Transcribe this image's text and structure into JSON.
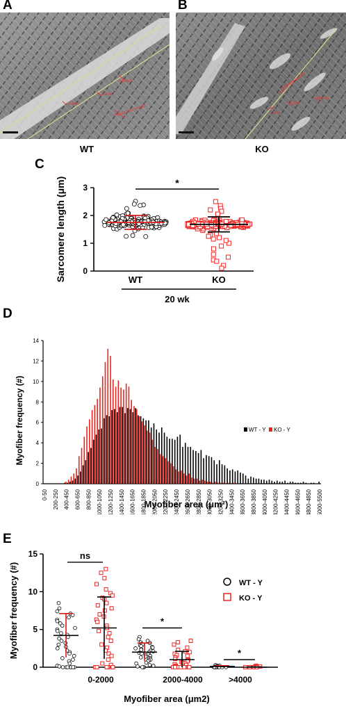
{
  "panels": {
    "a": {
      "letter": "A",
      "caption": "WT",
      "annotations": [
        "Z-line",
        "Z-line",
        "I-band",
        "Sarcomere length"
      ]
    },
    "b": {
      "letter": "B",
      "caption": "KO",
      "annotations": [
        "Sarcomere length",
        "Z-line",
        "I-band",
        "Z-line"
      ]
    },
    "c": {
      "letter": "C"
    },
    "d": {
      "letter": "D"
    },
    "e": {
      "letter": "E"
    }
  },
  "chart_data": [
    {
      "id": "C",
      "type": "scatter",
      "ylabel": "Sarcomere length (μm)",
      "ylim": [
        0,
        3
      ],
      "yticks": [
        "0",
        "1",
        "2",
        "3"
      ],
      "categories": [
        "WT",
        "KO"
      ],
      "group_label": "20 wk",
      "series": [
        {
          "name": "WT",
          "marker": "circle",
          "color": "#000000",
          "mean": 1.75,
          "sd": 0.25,
          "points": [
            1.76,
            1.52,
            2.02,
            1.91,
            1.66,
            1.81,
            2.25,
            1.55,
            1.6,
            1.72,
            1.95,
            1.58,
            1.76,
            2.06,
            1.72,
            1.7,
            1.98,
            2.08,
            1.74,
            1.81,
            1.7,
            1.53,
            1.9,
            1.79,
            1.51,
            1.66,
            1.6,
            1.96,
            1.92,
            1.86,
            1.77,
            1.71,
            1.57,
            1.56,
            1.75,
            1.64,
            1.69,
            1.91,
            1.7,
            1.56,
            1.71,
            1.67,
            1.88,
            1.59,
            1.68,
            1.64,
            1.58,
            1.99,
            1.81,
            1.65,
            1.97,
            1.75,
            2.08,
            1.63,
            1.71,
            1.67,
            1.94,
            1.89,
            1.95,
            1.58,
            1.92,
            1.86,
            1.68,
            1.75,
            1.61,
            1.58,
            1.64,
            1.75,
            1.79,
            1.77,
            1.84,
            1.79,
            1.81,
            1.65,
            1.71,
            1.75,
            1.6,
            1.8,
            1.68,
            1.76,
            1.77,
            1.88,
            1.71,
            1.76,
            1.7,
            1.76,
            1.73,
            1.92,
            1.63,
            1.76,
            1.74,
            1.71,
            1.78,
            1.6,
            1.75,
            1.77,
            1.82,
            1.89,
            1.67,
            1.76,
            1.67,
            1.77,
            1.78,
            1.87,
            1.73,
            1.81,
            1.71,
            1.9,
            1.75,
            1.73,
            1.76,
            1.58,
            1.85,
            1.92,
            1.67,
            1.77,
            1.68,
            1.75,
            1.79,
            1.69,
            1.79,
            1.77,
            1.86,
            1.82,
            1.8,
            1.74,
            1.89,
            1.74,
            1.75,
            1.67,
            1.72,
            1.77,
            1.73,
            1.63,
            1.72,
            1.79,
            1.69,
            1.82,
            1.64,
            1.84,
            1.76,
            1.79,
            1.74,
            1.67,
            1.75,
            1.68,
            1.78,
            1.73,
            1.72,
            1.8,
            1.73,
            1.69,
            1.71,
            1.67,
            1.85,
            1.78,
            1.7,
            1.75,
            1.79,
            1.74,
            1.69,
            1.71,
            1.8,
            1.71,
            1.77,
            1.73,
            1.77,
            1.75,
            1.72,
            1.68,
            1.71,
            1.75,
            1.75,
            1.81,
            1.76,
            1.72,
            1.76,
            1.73,
            1.78,
            1.7,
            1.77,
            1.74,
            1.73,
            1.71,
            1.77,
            1.75,
            1.74,
            1.76,
            2.51,
            2.41,
            2.38,
            2.36,
            1.25,
            1.28,
            1.45,
            1.24
          ]
        },
        {
          "name": "KO",
          "marker": "square",
          "color": "#ee2222",
          "mean": 1.68,
          "sd": 0.27,
          "points": [
            1.72,
            1.82,
            1.78,
            1.46,
            1.6,
            1.63,
            1.72,
            1.84,
            1.83,
            1.82,
            1.67,
            1.73,
            1.52,
            1.6,
            1.78,
            1.67,
            1.65,
            1.64,
            1.62,
            1.53,
            1.76,
            1.6,
            1.54,
            1.7,
            1.57,
            1.67,
            1.79,
            1.61,
            1.69,
            1.69,
            1.75,
            1.74,
            1.63,
            1.6,
            1.52,
            1.61,
            1.71,
            1.6,
            1.75,
            1.67,
            1.85,
            1.69,
            1.82,
            1.68,
            1.69,
            1.71,
            1.59,
            1.71,
            1.61,
            1.62,
            1.64,
            1.78,
            1.73,
            1.62,
            1.64,
            1.59,
            1.66,
            1.67,
            1.61,
            1.73,
            1.72,
            1.73,
            1.59,
            1.71,
            1.59,
            1.71,
            1.69,
            1.62,
            1.6,
            1.6,
            1.6,
            1.66,
            1.7,
            1.64,
            1.66,
            1.72,
            1.64,
            1.64,
            1.68,
            1.68,
            1.7,
            1.68,
            1.66,
            1.67,
            1.72,
            1.67,
            1.68,
            1.69,
            1.67,
            1.63,
            1.64,
            1.67,
            1.64,
            1.67,
            1.65,
            1.68,
            1.67,
            1.65,
            1.66,
            1.66,
            1.76,
            1.67,
            1.67,
            1.69,
            1.66,
            1.68,
            1.67,
            1.67,
            1.66,
            1.68,
            1.73,
            1.84,
            1.63,
            1.62,
            1.71,
            1.73,
            1.71,
            1.69,
            1.73,
            1.74,
            1.69,
            1.64,
            1.75,
            1.83,
            1.62,
            1.68,
            1.76,
            1.63,
            1.66,
            1.77,
            1.73,
            1.71,
            1.67,
            1.65,
            1.62,
            1.58,
            1.62,
            1.66,
            1.7,
            1.59,
            1.72,
            1.63,
            1.65,
            1.69,
            1.63,
            1.73,
            1.6,
            1.62,
            1.64,
            1.7,
            1.61,
            1.63,
            1.56,
            1.65,
            1.76,
            1.64,
            1.62,
            1.66,
            1.66,
            1.67,
            1.69,
            1.65,
            1.68,
            1.7,
            1.68,
            1.69,
            1.66,
            1.69,
            1.69,
            1.67,
            1.69,
            1.66,
            1.63,
            1.66,
            1.69,
            1.7,
            1.68,
            1.68,
            1.67,
            1.67,
            1.66,
            1.7,
            1.68,
            1.72,
            1.66,
            1.67,
            1.68,
            1.67,
            1.68,
            1.69,
            1.74,
            1.72,
            1.79,
            1.64,
            1.6,
            1.67,
            1.66,
            1.73,
            1.62,
            1.69,
            1.68,
            1.67,
            1.6,
            1.66,
            1.74,
            1.71,
            1.66,
            1.7,
            1.67,
            1.67,
            1.69,
            1.61,
            1.7,
            1.6,
            1.68,
            1.7,
            1.68,
            1.69,
            1.68,
            1.67,
            1.68,
            1.65,
            1.67,
            1.64,
            1.68,
            1.66,
            1.66,
            1.68,
            1.68,
            1.66,
            1.69,
            1.65,
            1.7,
            1.67,
            1.66,
            1.69,
            1.69,
            1.68,
            2.35,
            2.25,
            2.5,
            2.15,
            2.2,
            2.05,
            1.35,
            1.3,
            1.2,
            1.15,
            1.25,
            1.0,
            0.9,
            0.8,
            0.6,
            0.5,
            0.4,
            0.2,
            0.1,
            0.35,
            1.1
          ]
        }
      ],
      "annotations": [
        {
          "text": "*",
          "between": [
            "WT",
            "KO"
          ]
        }
      ]
    },
    {
      "id": "D",
      "type": "bar",
      "xlabel": "Myofiber area (μm²)",
      "ylabel": "Myofiber frequency (#)",
      "ylim": [
        0,
        14
      ],
      "yticks": [
        "0",
        "2",
        "4",
        "6",
        "8",
        "10",
        "12",
        "14"
      ],
      "bin_width": 50,
      "bin_start": 0,
      "tick_labels": [
        "0-50",
        "200-250",
        "400-450",
        "600-650",
        "800-850",
        "1000-1050",
        "1200-1250",
        "1400-1450",
        "1600-1650",
        "1800-1850",
        "2000-2050",
        "2200-2250",
        "2400-2450",
        "2600-2650",
        "2800-2850",
        "3000-3050",
        "3200-3250",
        "3400-3450",
        "3600-3650",
        "3800-3850",
        "4000-4050",
        "4200-4250",
        "4400-4450",
        "4600-4650",
        "4800-4850",
        "5000-5500"
      ],
      "legend": {
        "position": "right",
        "entries": [
          "WT - Y",
          "KO - Y"
        ]
      },
      "series": [
        {
          "name": "WT - Y",
          "color": "#000000",
          "values": [
            0,
            0,
            0,
            0,
            0,
            0,
            0,
            0,
            0.1,
            0.1,
            0.2,
            0.3,
            0.5,
            0.8,
            1.2,
            1.8,
            2.3,
            3.1,
            3.5,
            4.3,
            4.8,
            5.3,
            5.4,
            6.4,
            6.7,
            6.6,
            7.2,
            7.3,
            7.0,
            7.5,
            7.5,
            6.9,
            7.4,
            7.3,
            7.0,
            7.4,
            6.7,
            6.6,
            6.4,
            6.2,
            6.2,
            5.5,
            5.9,
            5.3,
            5.0,
            5.5,
            5.0,
            4.6,
            4.4,
            4.4,
            4.3,
            4.6,
            4.8,
            3.6,
            4.0,
            3.6,
            3.6,
            3.3,
            3.2,
            3.0,
            3.3,
            2.5,
            2.8,
            2.7,
            2.6,
            2.3,
            1.9,
            2.3,
            1.9,
            1.8,
            1.5,
            1.3,
            1.4,
            1.2,
            1.3,
            1.1,
            1.0,
            0.8,
            0.5,
            0.7,
            0.6,
            0.5,
            0.5,
            0.4,
            0.4,
            0.3,
            0.4,
            0.3,
            0.2,
            0.3,
            0.2,
            0.2,
            0.3,
            0.1,
            0.2,
            0.2,
            0.1,
            0.1,
            0.1,
            0.2,
            0.1,
            0.0,
            0.1,
            0.1,
            0.0,
            0.2
          ]
        },
        {
          "name": "KO - Y",
          "color": "#e8231c",
          "values": [
            0,
            0,
            0,
            0,
            0,
            0,
            0,
            0,
            0.2,
            0.4,
            0.7,
            1.0,
            1.5,
            2.7,
            3.5,
            4.6,
            5.6,
            6.3,
            7.2,
            7.7,
            8.3,
            9.4,
            10.5,
            11.9,
            13.2,
            12.5,
            10.2,
            9.5,
            10.1,
            9.4,
            9.2,
            9.8,
            9.5,
            8.2,
            7.6,
            7.3,
            6.6,
            6.1,
            5.7,
            5.2,
            5.0,
            4.3,
            3.6,
            3.4,
            2.9,
            2.7,
            2.5,
            2.2,
            2.0,
            1.7,
            1.4,
            1.2,
            1.3,
            1.0,
            0.8,
            1.0,
            0.6,
            0.5,
            0.5,
            0.3,
            0.4,
            0.3,
            0.2,
            0.2,
            0.1,
            0.2,
            0.1,
            0.1,
            0.1,
            0.0,
            0.1,
            0.0,
            0.1,
            0.0,
            0.0,
            0.0,
            0.0,
            0.0,
            0.0,
            0.0,
            0.0,
            0.0,
            0.0,
            0.0,
            0.0,
            0.0,
            0.0,
            0.0,
            0.0,
            0.0,
            0.0,
            0.0,
            0.0,
            0.0,
            0.0,
            0.0,
            0.0,
            0.0,
            0.0,
            0.0,
            0.0,
            0.0,
            0.0,
            0.0,
            0.0,
            0.0
          ]
        }
      ]
    },
    {
      "id": "E",
      "type": "scatter",
      "xlabel": "Myofiber area (μm2)",
      "ylabel": "Myofiber frequency (#)",
      "ylim": [
        0,
        15
      ],
      "yticks": [
        "0",
        "5",
        "10",
        "15"
      ],
      "categories": [
        "0-2000",
        "2000-4000",
        ">4000"
      ],
      "legend": {
        "position": "right",
        "entries": [
          "WT - Y",
          "KO - Y"
        ]
      },
      "series": [
        {
          "name": "WT - Y",
          "marker": "circle",
          "color": "#000000",
          "groups": [
            {
              "mean": 4.2,
              "sd": 2.9,
              "points": [
                8.5,
                7.8,
                7.4,
                7.1,
                6.9,
                6.6,
                6.3,
                6.1,
                5.8,
                5.5,
                5.2,
                5.0,
                4.8,
                4.5,
                4.3,
                4.0,
                3.8,
                3.5,
                3.2,
                3.0,
                2.7,
                2.5,
                2.2,
                2.0,
                1.8,
                1.5,
                1.2,
                1.0,
                0.8,
                0.5,
                0.2,
                0.1,
                0,
                0,
                0,
                0,
                0,
                0,
                0
              ]
            },
            {
              "mean": 2.0,
              "sd": 1.2,
              "points": [
                4.0,
                3.7,
                3.5,
                3.3,
                3.2,
                3.1,
                3.0,
                2.9,
                2.8,
                2.7,
                2.6,
                2.5,
                2.4,
                2.3,
                2.2,
                2.1,
                2.0,
                1.9,
                1.8,
                1.7,
                1.6,
                1.5,
                1.4,
                1.3,
                1.2,
                1.1,
                1.0,
                0.9,
                0.8,
                0.6,
                0.5,
                0.3,
                0.2,
                0.1,
                0,
                0,
                0
              ]
            },
            {
              "mean": 0.1,
              "sd": 0.1,
              "points": [
                0.3,
                0.2,
                0.2,
                0.1,
                0.1,
                0.1,
                0.1,
                0,
                0,
                0,
                0,
                0,
                0,
                0,
                0,
                0
              ]
            }
          ]
        },
        {
          "name": "KO - Y",
          "marker": "square",
          "color": "#ee2222",
          "groups": [
            {
              "mean": 5.2,
              "sd": 4.1,
              "points": [
                13.0,
                12.5,
                11.8,
                11.0,
                10.3,
                9.8,
                9.5,
                9.2,
                9.0,
                8.5,
                8.2,
                7.8,
                7.5,
                7.0,
                6.7,
                6.3,
                6.0,
                5.5,
                5.2,
                4.8,
                4.5,
                4.0,
                3.5,
                3.0,
                2.6,
                2.2,
                1.8,
                1.5,
                1.0,
                0.5,
                0.3,
                0,
                0,
                0,
                0,
                0,
                0,
                0
              ]
            },
            {
              "mean": 1.0,
              "sd": 1.1,
              "points": [
                3.5,
                3.3,
                3.0,
                2.6,
                2.3,
                2.1,
                2.0,
                1.8,
                1.6,
                1.5,
                1.3,
                1.1,
                1.0,
                0.9,
                0.8,
                0.7,
                0.6,
                0.5,
                0.4,
                0.3,
                0.2,
                0.1,
                0,
                0,
                0,
                0,
                0,
                0,
                0,
                0,
                0
              ]
            },
            {
              "mean": 0.0,
              "sd": 0.05,
              "points": [
                0.2,
                0.1,
                0.1,
                0,
                0,
                0,
                0,
                0,
                0,
                0,
                0,
                0,
                0
              ]
            }
          ]
        }
      ],
      "annotations": [
        {
          "text": "ns",
          "category": "0-2000"
        },
        {
          "text": "*",
          "category": "2000-4000"
        },
        {
          "text": "*",
          "category": ">4000"
        }
      ]
    }
  ]
}
